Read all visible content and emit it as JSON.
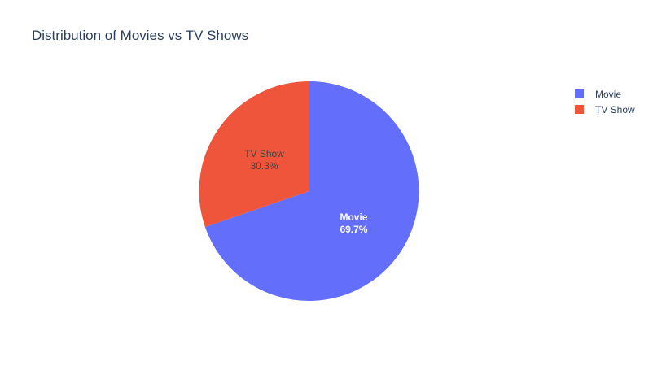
{
  "chart_data": {
    "type": "pie",
    "title": "Distribution of Movies vs TV Shows",
    "slices": [
      {
        "label": "Movie",
        "percent": 69.7,
        "percent_text": "69.7%",
        "color": "#636efa",
        "text_color": "#ffffff"
      },
      {
        "label": "TV Show",
        "percent": 30.3,
        "percent_text": "30.3%",
        "color": "#ef553b",
        "text_color": "#444444"
      }
    ],
    "direction": "clockwise",
    "legend": {
      "position": "top-right",
      "entries": [
        "Movie",
        "TV Show"
      ]
    }
  }
}
